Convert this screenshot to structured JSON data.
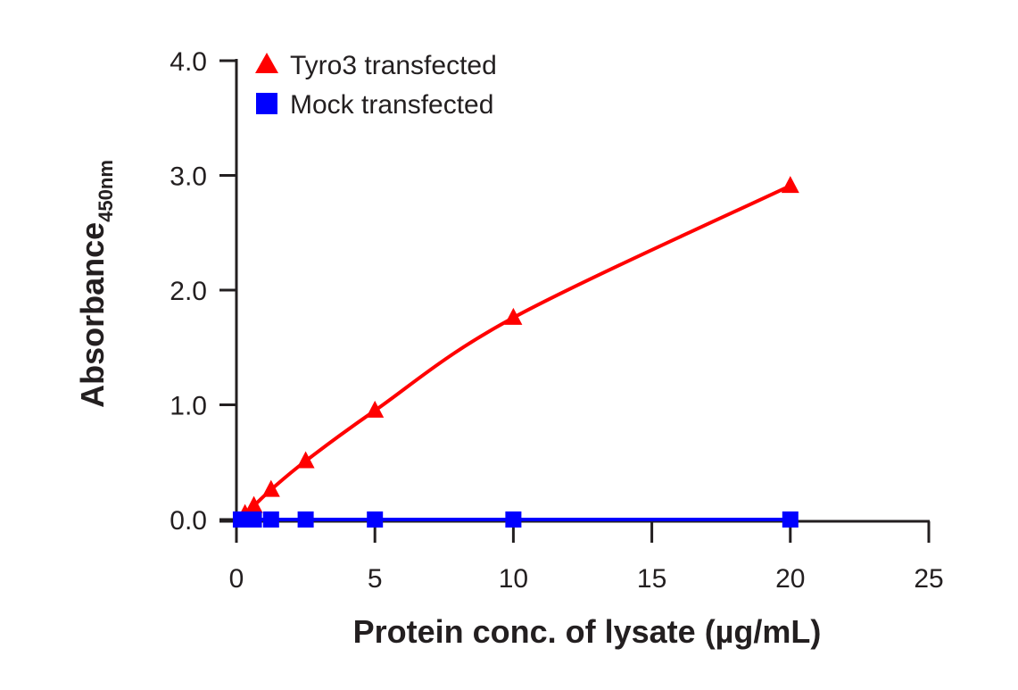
{
  "chart_data": {
    "type": "line",
    "title": "",
    "xlabel": "Protein conc. of lysate (µg/mL)",
    "ylabel": "Absorbance",
    "ylabel_subscript": "450nm",
    "xlim": [
      0,
      25
    ],
    "ylim": [
      0,
      4.0
    ],
    "xticks": [
      0,
      5,
      10,
      15,
      20,
      25
    ],
    "xtick_labels": [
      "0",
      "5",
      "10",
      "15",
      "20",
      "25"
    ],
    "yticks": [
      0,
      1,
      2,
      3,
      4
    ],
    "ytick_labels": [
      "0.0",
      "1.0",
      "2.0",
      "3.0",
      "4.0"
    ],
    "grid": false,
    "legend_position": "top-left",
    "series": [
      {
        "name": "Tyro3 transfected",
        "marker": "triangle",
        "color": "#ff0000",
        "x": [
          0.31,
          0.63,
          1.25,
          2.5,
          5,
          10,
          20
        ],
        "y": [
          0.05,
          0.12,
          0.26,
          0.51,
          0.95,
          1.76,
          2.91
        ]
      },
      {
        "name": "Mock transfected",
        "marker": "square",
        "color": "#0000ff",
        "x": [
          0.16,
          0.31,
          0.63,
          1.25,
          2.5,
          5,
          10,
          20
        ],
        "y": [
          0,
          0,
          0,
          0,
          0,
          0,
          0,
          0
        ]
      }
    ]
  }
}
